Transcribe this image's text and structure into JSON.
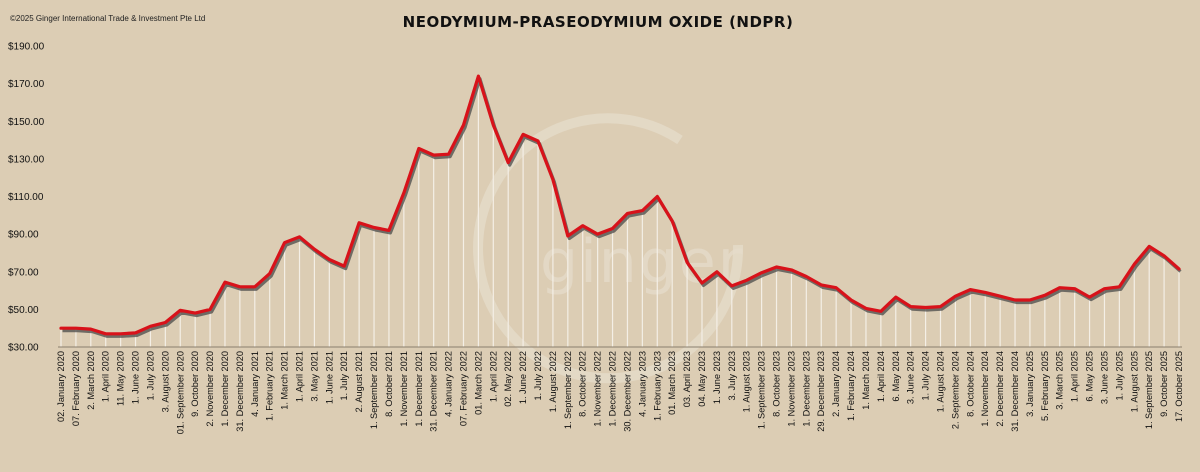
{
  "copyright": "©2025 Ginger International Trade & Investment Pte Ltd",
  "watermark": "ginger",
  "colors": {
    "background": "#dccdb4",
    "line": "#d8121a",
    "shadow": "#4a4a4a",
    "drop": "#f4efe6"
  },
  "chart_data": {
    "type": "line",
    "title": "NEODYMIUM-PRASEODYMIUM OXIDE (NDPR)",
    "ylim": [
      30,
      190
    ],
    "yticks": [
      "$190.00",
      "$170.00",
      "$150.00",
      "$130.00",
      "$110.00",
      "$90.00",
      "$70.00",
      "$50.00",
      "$30.00"
    ],
    "ytick_values": [
      190,
      170,
      150,
      130,
      110,
      90,
      70,
      50,
      30
    ],
    "xticks": [
      "02. January 2020",
      "07. February 2020",
      "2. March 2020",
      "1. April 2020",
      "11. May 2020",
      "1. June 2020",
      "1. July 2020",
      "3. August 2020",
      "01. September 2020",
      "9. October 2020",
      "2. November 2020",
      "1. December 2020",
      "31. December 2020",
      "4. January 2021",
      "1. February 2021",
      "1. March 2021",
      "1. April 2021",
      "3. May 2021",
      "1. June 2021",
      "1. July 2021",
      "2. August 2021",
      "1. September 2021",
      "8. October 2021",
      "1. November 2021",
      "1. December 2021",
      "31. December 2021",
      "4. January 2022",
      "07. February 2022",
      "01. March 2022",
      "1. April 2022",
      "02. May 2022",
      "1. June 2022",
      "1. July 2022",
      "1. August 2022",
      "1. September 2022",
      "8. October 2022",
      "1. November 2022",
      "1. December 2022",
      "30. December 2022",
      "4. January 2023",
      "1. February 2023",
      "01. March 2023",
      "03. April 2023",
      "04. May 2023",
      "1. June 2023",
      "3. July 2023",
      "1. August 2023",
      "1. September 2023",
      "8. October 2023",
      "1. November 2023",
      "1. December 2023",
      "29. December 2023",
      "2. January 2024",
      "1. February 2024",
      "1. March 2024",
      "1. April 2024",
      "6. May 2024",
      "3. June 2024",
      "1. July 2024",
      "1. August 2024",
      "2. September 2024",
      "8. October 2024",
      "1. November 2024",
      "2. December 2024",
      "31. December 2024",
      "3. January 2025",
      "5. February 2025",
      "3. March 2025",
      "1. April 2025",
      "6. May 2025",
      "3. June 2025",
      "1. July 2025",
      "1. August 2025",
      "1. September 2025",
      "9. October 2025",
      "17. October 2025"
    ],
    "values": [
      40,
      40,
      39.5,
      37,
      37,
      37.5,
      41,
      43,
      49.5,
      48,
      50,
      64.5,
      62,
      62,
      69,
      85.5,
      88.5,
      82,
      76.5,
      73,
      96,
      93.5,
      92,
      112,
      135.5,
      132,
      132.5,
      148,
      174,
      148,
      128,
      143,
      139.5,
      119,
      89,
      94.5,
      90,
      93,
      101,
      102.5,
      110,
      97,
      75,
      64,
      70,
      62.5,
      65.5,
      69.5,
      72.5,
      71,
      67.5,
      63,
      61.5,
      55,
      50.5,
      49,
      56.5,
      51.5,
      51,
      51.5,
      57,
      60.5,
      59,
      57,
      55,
      55,
      57.5,
      61.5,
      61,
      56.5,
      61,
      62,
      74,
      83.5,
      78.5,
      71.5
    ],
    "grid": false,
    "legend": "none"
  }
}
